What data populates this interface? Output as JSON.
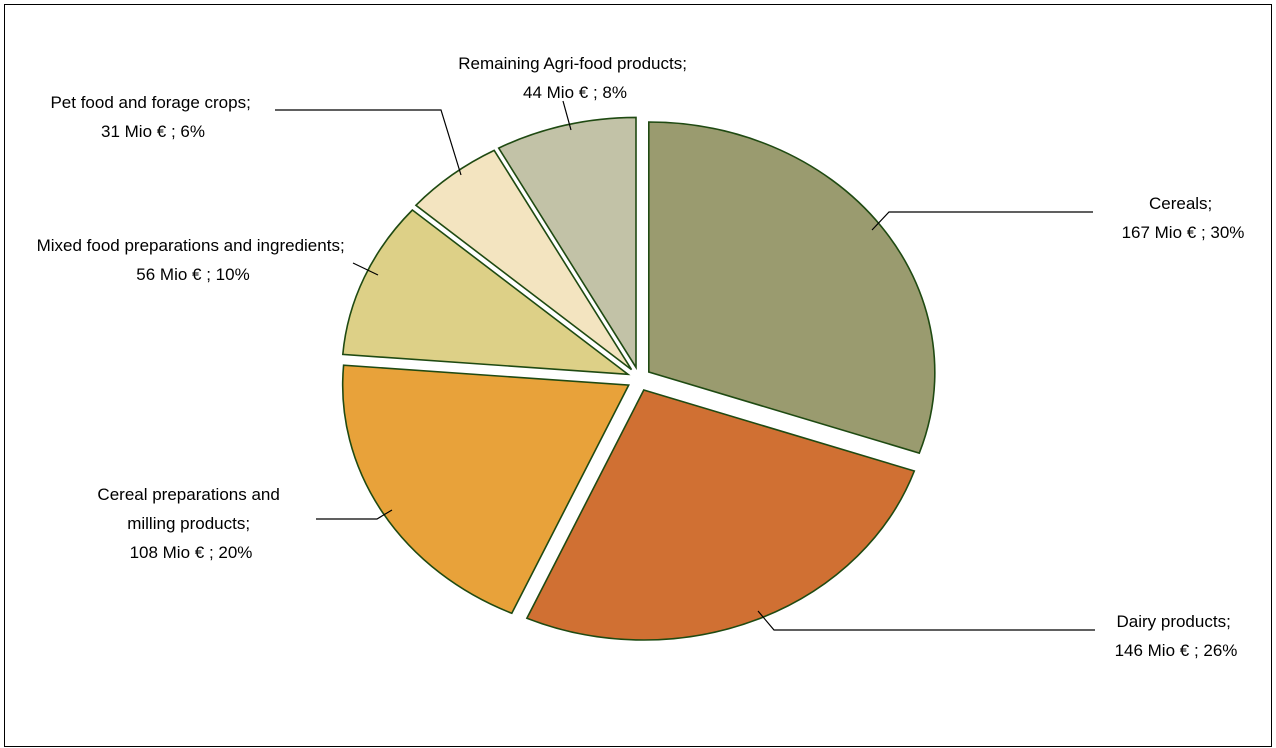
{
  "chart_data": {
    "type": "pie",
    "title": "",
    "legend": "none",
    "slices": [
      {
        "name": "Cereals",
        "value": 167,
        "unit_label": "Mio €",
        "percent": 30,
        "label_line1": "Cereals;",
        "label_line2": "167 Mio € ; 30%",
        "color": "#9a9b6f"
      },
      {
        "name": "Dairy products",
        "value": 146,
        "unit_label": "Mio €",
        "percent": 26,
        "label_line1": "Dairy products;",
        "label_line2": "146 Mio € ; 26%",
        "color": "#d07033"
      },
      {
        "name": "Cereal preparations and milling products",
        "value": 108,
        "unit_label": "Mio €",
        "percent": 20,
        "label_line1": "Cereal preparations and",
        "label_line2": "milling products;",
        "label_line3": "108 Mio € ; 20%",
        "color": "#e8a23a"
      },
      {
        "name": "Mixed food preparations and ingredients",
        "value": 56,
        "unit_label": "Mio €",
        "percent": 10,
        "label_line1": "Mixed food preparations and ingredients;",
        "label_line2": "56 Mio € ; 10%",
        "color": "#ddd087"
      },
      {
        "name": "Pet food and forage crops",
        "value": 31,
        "unit_label": "Mio €",
        "percent": 6,
        "label_line1": "Pet food and forage crops;",
        "label_line2": "31 Mio € ; 6%",
        "color": "#f3e4c0"
      },
      {
        "name": "Remaining Agri-food products",
        "value": 44,
        "unit_label": "Mio €",
        "percent": 8,
        "label_line1": "Remaining Agri-food products;",
        "label_line2": "44 Mio € ; 8%",
        "color": "#c2c2a7"
      }
    ]
  }
}
